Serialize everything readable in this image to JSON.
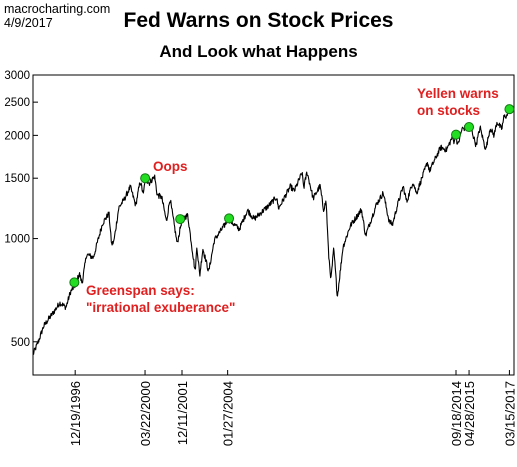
{
  "header": {
    "source": "macrocharting.com",
    "date": "4/9/2017"
  },
  "chart_data": {
    "type": "line",
    "title": "Fed Warns on Stock Prices",
    "subtitle": "And Look what Happens",
    "xlabel": "",
    "ylabel": "",
    "y_scale": "log",
    "ylim": [
      400,
      3000
    ],
    "xlim": [
      "1995-01-01",
      "2017-06-01"
    ],
    "grid": false,
    "y_ticks": [
      {
        "value": 500,
        "label": "500"
      },
      {
        "value": 1000,
        "label": "1000"
      },
      {
        "value": 1500,
        "label": "1500"
      },
      {
        "value": 2000,
        "label": "2000"
      },
      {
        "value": 2500,
        "label": "2500"
      },
      {
        "value": 3000,
        "label": "3000"
      }
    ],
    "x_ticks": [
      {
        "date": "1996-12-19",
        "label": "12/19/1996"
      },
      {
        "date": "2000-03-22",
        "label": "03/22/2000"
      },
      {
        "date": "2001-12-11",
        "label": "12/11/2001"
      },
      {
        "date": "2004-01-27",
        "label": "01/27/2004"
      },
      {
        "date": "2014-09-18",
        "label": "09/18/2014"
      },
      {
        "date": "2015-04-28",
        "label": "04/28/2015"
      },
      {
        "date": "2017-03-15",
        "label": "03/15/2017"
      }
    ],
    "series": [
      {
        "points": [
          [
            "1995-01-03",
            460
          ],
          [
            "1995-04-01",
            500
          ],
          [
            "1995-07-01",
            555
          ],
          [
            "1995-10-01",
            585
          ],
          [
            "1996-01-01",
            615
          ],
          [
            "1996-04-01",
            650
          ],
          [
            "1996-07-15",
            630
          ],
          [
            "1996-10-01",
            700
          ],
          [
            "1996-12-19",
            730
          ],
          [
            "1997-03-01",
            790
          ],
          [
            "1997-04-15",
            740
          ],
          [
            "1997-07-01",
            900
          ],
          [
            "1997-10-25",
            880
          ],
          [
            "1998-01-01",
            975
          ],
          [
            "1998-04-01",
            1110
          ],
          [
            "1998-07-17",
            1185
          ],
          [
            "1998-08-31",
            960
          ],
          [
            "1998-10-08",
            980
          ],
          [
            "1998-12-31",
            1230
          ],
          [
            "1999-04-01",
            1300
          ],
          [
            "1999-07-16",
            1415
          ],
          [
            "1999-10-15",
            1250
          ],
          [
            "1999-12-31",
            1470
          ],
          [
            "2000-02-25",
            1340
          ],
          [
            "2000-03-22",
            1500
          ],
          [
            "2000-06-01",
            1450
          ],
          [
            "2000-09-01",
            1520
          ],
          [
            "2000-10-15",
            1340
          ],
          [
            "2000-12-31",
            1320
          ],
          [
            "2001-03-22",
            1120
          ],
          [
            "2001-05-21",
            1310
          ],
          [
            "2001-09-21",
            965
          ],
          [
            "2001-12-11",
            1140
          ],
          [
            "2002-03-19",
            1170
          ],
          [
            "2002-07-23",
            800
          ],
          [
            "2002-08-22",
            950
          ],
          [
            "2002-10-09",
            780
          ],
          [
            "2002-12-01",
            935
          ],
          [
            "2003-03-11",
            800
          ],
          [
            "2003-06-15",
            990
          ],
          [
            "2003-12-31",
            1110
          ],
          [
            "2004-01-27",
            1145
          ],
          [
            "2004-08-12",
            1065
          ],
          [
            "2004-12-31",
            1210
          ],
          [
            "2005-04-20",
            1140
          ],
          [
            "2005-12-31",
            1250
          ],
          [
            "2006-05-05",
            1320
          ],
          [
            "2006-06-13",
            1225
          ],
          [
            "2006-12-31",
            1420
          ],
          [
            "2007-03-05",
            1375
          ],
          [
            "2007-07-16",
            1555
          ],
          [
            "2007-08-16",
            1410
          ],
          [
            "2007-10-09",
            1565
          ],
          [
            "2008-01-22",
            1310
          ],
          [
            "2008-05-19",
            1425
          ],
          [
            "2008-07-15",
            1215
          ],
          [
            "2008-08-29",
            1285
          ],
          [
            "2008-10-10",
            900
          ],
          [
            "2008-11-20",
            760
          ],
          [
            "2009-01-06",
            935
          ],
          [
            "2009-03-09",
            676
          ],
          [
            "2009-06-12",
            945
          ],
          [
            "2009-10-15",
            1090
          ],
          [
            "2010-04-23",
            1215
          ],
          [
            "2010-07-02",
            1020
          ],
          [
            "2010-12-31",
            1255
          ],
          [
            "2011-04-29",
            1360
          ],
          [
            "2011-08-08",
            1120
          ],
          [
            "2011-10-03",
            1100
          ],
          [
            "2011-12-31",
            1260
          ],
          [
            "2012-04-02",
            1420
          ],
          [
            "2012-06-01",
            1280
          ],
          [
            "2012-09-14",
            1465
          ],
          [
            "2012-11-15",
            1355
          ],
          [
            "2013-05-21",
            1670
          ],
          [
            "2013-06-24",
            1575
          ],
          [
            "2013-12-31",
            1845
          ],
          [
            "2014-04-11",
            1815
          ],
          [
            "2014-07-24",
            1990
          ],
          [
            "2014-08-07",
            1910
          ],
          [
            "2014-09-18",
            2010
          ],
          [
            "2014-10-15",
            1860
          ],
          [
            "2014-12-29",
            2090
          ],
          [
            "2015-04-28",
            2115
          ],
          [
            "2015-05-21",
            2130
          ],
          [
            "2015-08-25",
            1870
          ],
          [
            "2015-11-03",
            2110
          ],
          [
            "2016-01-20",
            1860
          ],
          [
            "2016-02-11",
            1830
          ],
          [
            "2016-04-20",
            2100
          ],
          [
            "2016-06-27",
            2000
          ],
          [
            "2016-08-15",
            2190
          ],
          [
            "2016-11-04",
            2085
          ],
          [
            "2016-12-13",
            2270
          ],
          [
            "2017-02-01",
            2280
          ],
          [
            "2017-03-01",
            2395
          ],
          [
            "2017-03-15",
            2385
          ],
          [
            "2017-04-07",
            2355
          ]
        ]
      }
    ],
    "events": [
      {
        "date": "1996-12-05",
        "value": 745
      },
      {
        "date": "2000-03-24",
        "value": 1500
      },
      {
        "date": "2001-11-10",
        "value": 1140
      },
      {
        "date": "2004-02-20",
        "value": 1145
      },
      {
        "date": "2014-09-18",
        "value": 2010
      },
      {
        "date": "2015-04-28",
        "value": 2115
      },
      {
        "date": "2017-03-15",
        "value": 2385
      }
    ],
    "annotations": [
      {
        "lines": [
          "Greenspan says:",
          "\"irrational exuberance\""
        ]
      },
      {
        "lines": [
          "Oops"
        ]
      },
      {
        "lines": [
          "Yellen warns",
          "on stocks"
        ]
      }
    ],
    "colors": {
      "line": "#000000",
      "marker_fill": "#22dd22",
      "marker_stroke": "#117711",
      "annotation": "#e02020",
      "axis": "#000000"
    }
  }
}
